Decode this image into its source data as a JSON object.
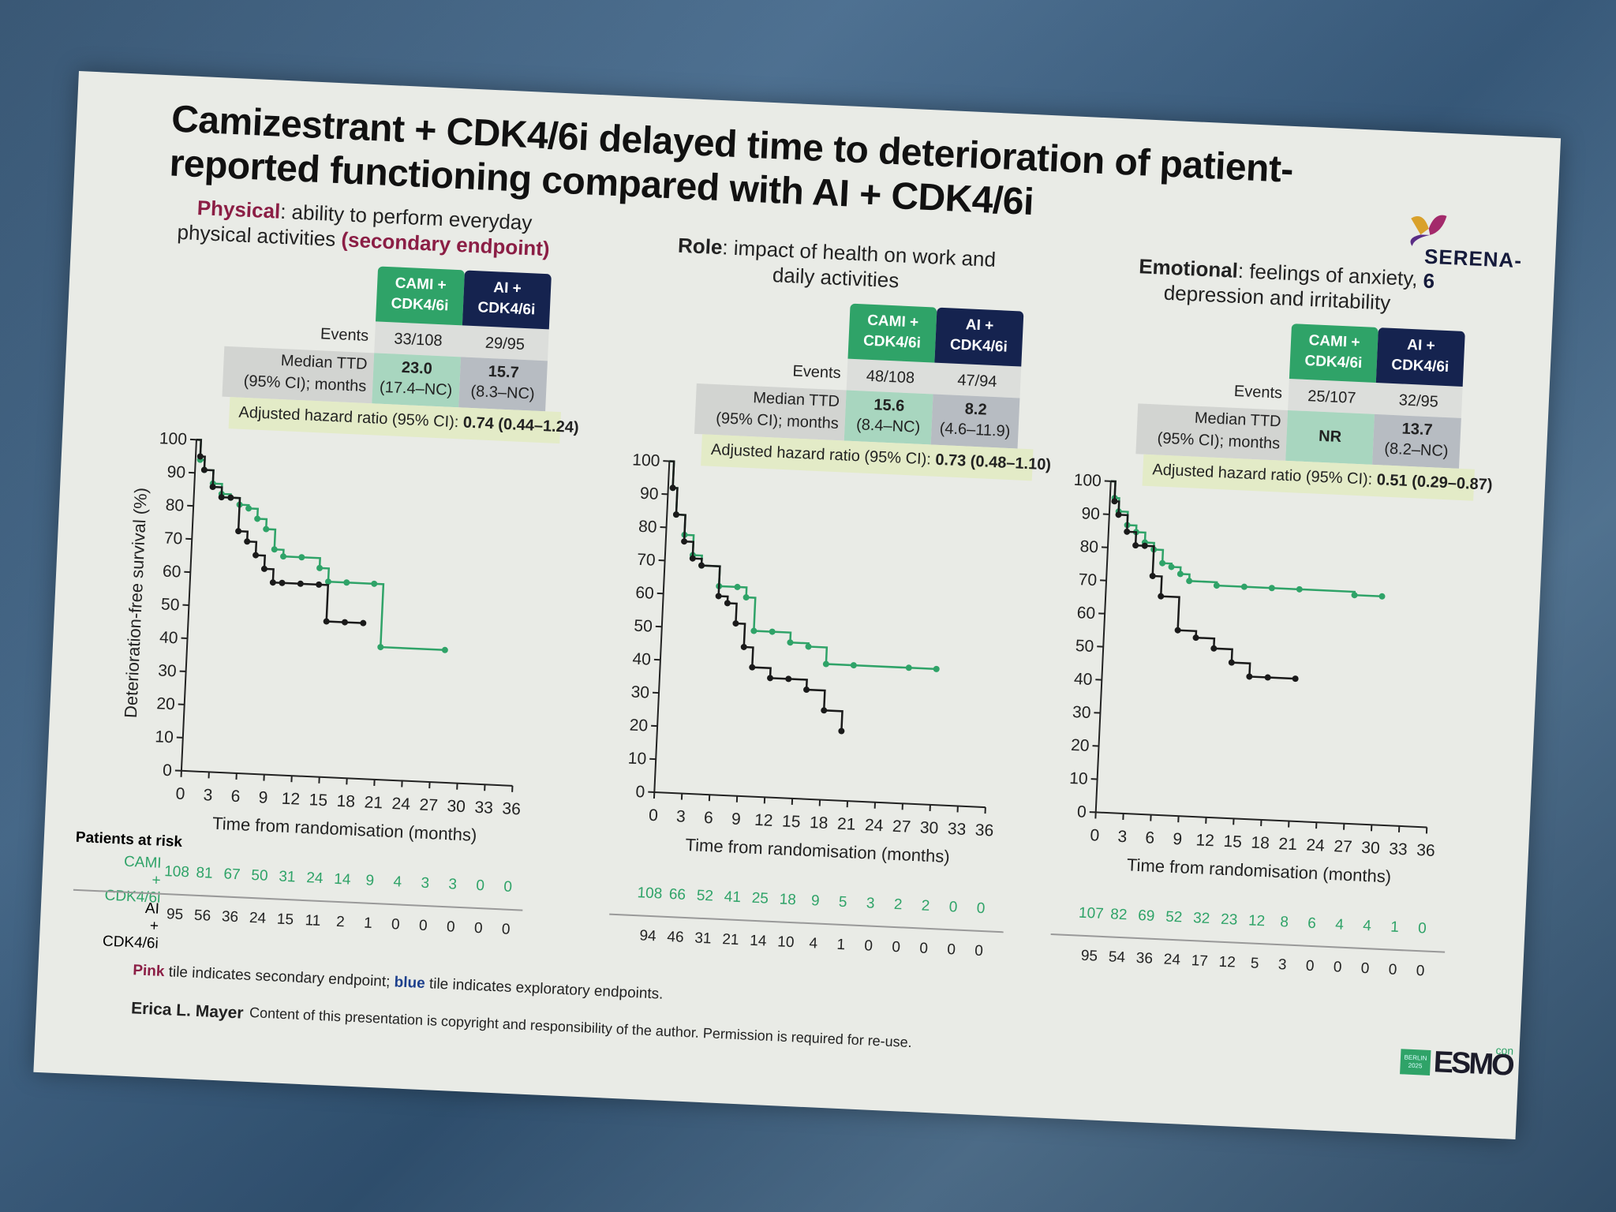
{
  "slide": {
    "title": "Camizestrant + CDK4/6i delayed time to deterioration of patient-reported functioning compared with AI + CDK4/6i",
    "logo_text": "SERENA-6",
    "footnote_pink": "Pink",
    "footnote_rest": " tile indicates secondary endpoint; ",
    "footnote_blue": "blue",
    "footnote_end": " tile indicates exploratory endpoints.",
    "author": "Erica L. Mayer",
    "copyright": "Content of this presentation is copyright and responsibility of the author. Permission is required for re-use.",
    "congress_logo": "ESMO",
    "congress_badge": "BERLIN 2025",
    "congress_suffix": "con",
    "colors": {
      "cami": "#2fa368",
      "ai": "#15234f",
      "curve_ai": "#1a1a1a",
      "pink": "#8b1e45"
    }
  },
  "labels": {
    "ylabel": "Deterioration-free survival (%)",
    "xlabel": "Time from randomisation (months)",
    "patients_at_risk": "Patients at risk",
    "arm_cami_line1": "CAMI",
    "arm_cami_line2": "+ CDK4/6i",
    "arm_ai_line1": "AI",
    "arm_ai_line2": "+ CDK4/6i",
    "col_cami": "CAMI + CDK4/6i",
    "col_ai": "AI + CDK4/6i",
    "events": "Events",
    "median_l1": "Median TTD",
    "median_l2": "(95% CI); months",
    "hr_prefix": "Adjusted hazard ratio (95% CI): "
  },
  "chart_data": [
    {
      "type": "line",
      "id": "physical",
      "heading_bold": "Physical",
      "heading_rest": ": ability to perform everyday physical activities ",
      "heading_tail": "(secondary endpoint)",
      "xlabel": "Time from randomisation (months)",
      "ylabel": "Deterioration-free survival (%)",
      "xlim": [
        0,
        36
      ],
      "ylim": [
        0,
        100
      ],
      "xticks": [
        0,
        3,
        6,
        9,
        12,
        15,
        18,
        21,
        24,
        27,
        30,
        33,
        36
      ],
      "yticks": [
        0,
        10,
        20,
        30,
        40,
        50,
        60,
        70,
        80,
        90,
        100
      ],
      "stats": {
        "events_cami": "33/108",
        "events_ai": "29/95",
        "median_cami": "23.0",
        "ci_cami": "(17.4–NC)",
        "median_ai": "15.7",
        "ci_ai": "(8.3–NC)",
        "hr": "0.74 (0.44–1.24)"
      },
      "series": [
        {
          "name": "CAMI + CDK4/6i",
          "color": "#2fa368",
          "x": [
            0,
            0.5,
            1,
            2,
            3,
            4,
            5,
            6,
            7,
            8,
            9,
            10,
            12,
            14,
            15,
            17,
            20,
            21,
            28
          ],
          "y": [
            100,
            94,
            91,
            87,
            84,
            83,
            81,
            80,
            77,
            74,
            68,
            66,
            66,
            63,
            59,
            59,
            59,
            40,
            40
          ]
        },
        {
          "name": "AI + CDK4/6i",
          "color": "#1a1a1a",
          "x": [
            0,
            0.5,
            1,
            2,
            3,
            4,
            5,
            6,
            7,
            8,
            9,
            10,
            12,
            14,
            15,
            17,
            19
          ],
          "y": [
            100,
            95,
            91,
            86,
            83,
            83,
            73,
            70,
            66,
            62,
            58,
            58,
            58,
            58,
            47,
            47,
            47
          ]
        }
      ],
      "at_risk": {
        "cami": [
          108,
          81,
          67,
          50,
          31,
          24,
          14,
          9,
          4,
          3,
          3,
          0,
          0
        ],
        "ai": [
          95,
          56,
          36,
          24,
          15,
          11,
          2,
          1,
          0,
          0,
          0,
          0,
          0
        ]
      }
    },
    {
      "type": "line",
      "id": "role",
      "heading_bold": "Role",
      "heading_rest": ": impact of health on work and daily activities",
      "heading_tail": "",
      "xlabel": "Time from randomisation (months)",
      "xlim": [
        0,
        36
      ],
      "ylim": [
        0,
        100
      ],
      "xticks": [
        0,
        3,
        6,
        9,
        12,
        15,
        18,
        21,
        24,
        27,
        30,
        33,
        36
      ],
      "yticks": [
        0,
        10,
        20,
        30,
        40,
        50,
        60,
        70,
        80,
        90,
        100
      ],
      "stats": {
        "events_cami": "48/108",
        "events_ai": "47/94",
        "median_cami": "15.6",
        "ci_cami": "(8.4–NC)",
        "median_ai": "8.2",
        "ci_ai": "(4.6–11.9)",
        "hr": "0.73 (0.48–1.10)"
      },
      "series": [
        {
          "name": "CAMI + CDK4/6i",
          "color": "#2fa368",
          "x": [
            0,
            0.5,
            1,
            2,
            3,
            4,
            6,
            8,
            9,
            10,
            12,
            14,
            16,
            18,
            21,
            27,
            30
          ],
          "y": [
            100,
            92,
            84,
            78,
            72,
            69,
            63,
            63,
            60,
            50,
            50,
            47,
            46,
            41,
            41,
            41,
            41
          ]
        },
        {
          "name": "AI + CDK4/6i",
          "color": "#1a1a1a",
          "x": [
            0,
            0.5,
            1,
            2,
            3,
            4,
            6,
            7,
            8,
            9,
            10,
            12,
            14,
            16,
            18,
            20
          ],
          "y": [
            100,
            92,
            84,
            76,
            71,
            69,
            60,
            58,
            52,
            45,
            39,
            36,
            36,
            33,
            27,
            21
          ]
        }
      ],
      "at_risk": {
        "cami": [
          108,
          66,
          52,
          41,
          25,
          18,
          9,
          5,
          3,
          2,
          2,
          0,
          0
        ],
        "ai": [
          94,
          46,
          31,
          21,
          14,
          10,
          4,
          1,
          0,
          0,
          0,
          0,
          0
        ]
      }
    },
    {
      "type": "line",
      "id": "emotional",
      "heading_bold": "Emotional",
      "heading_rest": ": feelings of anxiety, depression and irritability",
      "heading_tail": "",
      "xlabel": "Time from randomisation (months)",
      "xlim": [
        0,
        36
      ],
      "ylim": [
        0,
        100
      ],
      "xticks": [
        0,
        3,
        6,
        9,
        12,
        15,
        18,
        21,
        24,
        27,
        30,
        33,
        36
      ],
      "yticks": [
        0,
        10,
        20,
        30,
        40,
        50,
        60,
        70,
        80,
        90,
        100
      ],
      "stats": {
        "events_cami": "25/107",
        "events_ai": "32/95",
        "median_cami": "NR",
        "ci_cami": "",
        "median_ai": "13.7",
        "ci_ai": "(8.2–NC)",
        "hr": "0.51 (0.29–0.87)"
      },
      "series": [
        {
          "name": "CAMI + CDK4/6i",
          "color": "#2fa368",
          "x": [
            0,
            0.5,
            1,
            2,
            3,
            4,
            5,
            6,
            7,
            8,
            9,
            12,
            15,
            18,
            21,
            27,
            30
          ],
          "y": [
            100,
            95,
            91,
            87,
            85,
            82,
            80,
            76,
            75,
            73,
            71,
            70,
            70,
            70,
            70,
            69,
            69
          ]
        },
        {
          "name": "AI + CDK4/6i",
          "color": "#1a1a1a",
          "x": [
            0,
            0.5,
            1,
            2,
            3,
            4,
            5,
            6,
            8,
            10,
            12,
            14,
            16,
            18,
            21
          ],
          "y": [
            100,
            94,
            90,
            85,
            81,
            81,
            72,
            66,
            56,
            54,
            51,
            47,
            43,
            43,
            43
          ]
        }
      ],
      "at_risk": {
        "cami": [
          107,
          82,
          69,
          52,
          32,
          23,
          12,
          8,
          6,
          4,
          4,
          1,
          0
        ],
        "ai": [
          95,
          54,
          36,
          24,
          17,
          12,
          5,
          3,
          0,
          0,
          0,
          0,
          0
        ]
      }
    }
  ]
}
